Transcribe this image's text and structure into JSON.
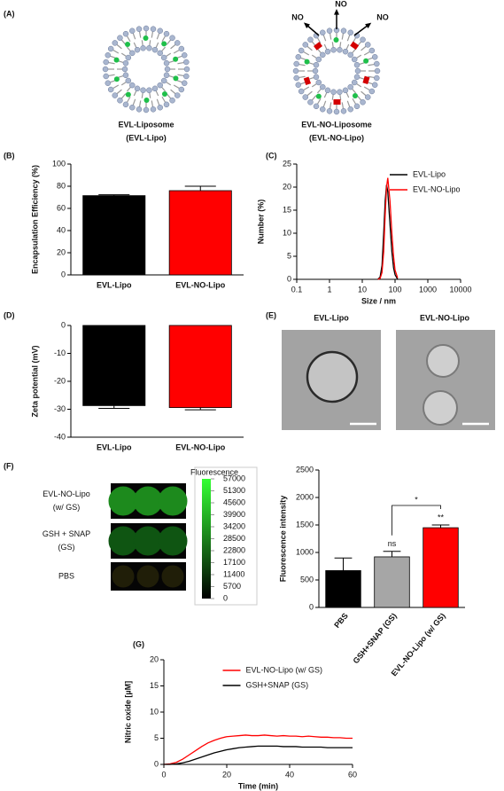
{
  "panel_labels": [
    "(A)",
    "(B)",
    "(C)",
    "(D)",
    "(E)",
    "(F)",
    "(G)"
  ],
  "panel_a": {
    "captions": [
      [
        "EVL-Liposome",
        "(EVL-Lipo)"
      ],
      [
        "EVL-NO-Liposome",
        "(EVL-NO-Lipo)"
      ]
    ],
    "no_labels": [
      "NO",
      "NO",
      "NO"
    ]
  },
  "panel_e": {
    "titles": [
      "EVL-Lipo",
      "EVL-NO-Lipo"
    ]
  },
  "panel_f": {
    "rows": [
      [
        "EVL-NO-Lipo",
        "(w/ GS)"
      ],
      [
        "GSH + SNAP",
        "(GS)"
      ],
      [
        "PBS"
      ]
    ],
    "colorbar": {
      "title": "Fluorescence",
      "ticks": [
        57000,
        51300,
        45600,
        39900,
        34200,
        28500,
        22800,
        17100,
        11400,
        5700,
        0
      ]
    }
  },
  "chart_data": [
    {
      "type": "bar",
      "ylabel": "Encapsulation Efficiency (%)",
      "categories": [
        "EVL-Lipo",
        "EVL-NO-Lipo"
      ],
      "values": [
        71.5,
        76
      ],
      "errors": [
        0.8,
        4
      ],
      "colors": [
        "#000000",
        "#ff0000"
      ],
      "ylim": [
        0,
        100
      ],
      "yticks": [
        0,
        20,
        40,
        60,
        80,
        100
      ]
    },
    {
      "type": "line",
      "xlabel": "Size / nm",
      "ylabel": "Number (%)",
      "log_x": true,
      "x": [
        30,
        35,
        40,
        45,
        50,
        55,
        60,
        70,
        80,
        90,
        100,
        120
      ],
      "series": [
        {
          "name": "EVL-Lipo",
          "color": "#000000",
          "values": [
            0,
            0.5,
            3,
            10,
            17,
            20.5,
            19,
            12,
            6,
            2.5,
            1,
            0
          ]
        },
        {
          "name": "EVL-NO-Lipo",
          "color": "#ff0000",
          "values": [
            0,
            0.2,
            1.5,
            6,
            14,
            20,
            22,
            17,
            10,
            5,
            2,
            0.3
          ]
        }
      ],
      "xlim": [
        0.1,
        10000
      ],
      "xticks": [
        0.1,
        1,
        10,
        100,
        1000,
        10000
      ],
      "ylim": [
        0,
        25
      ],
      "yticks": [
        0,
        5,
        10,
        15,
        20,
        25
      ],
      "legend": "upper right"
    },
    {
      "type": "bar",
      "ylabel": "Zeta potential (mV)",
      "categories": [
        "EVL-Lipo",
        "EVL-NO-Lipo"
      ],
      "values": [
        -28.7,
        -29.4
      ],
      "errors": [
        1,
        0.8
      ],
      "colors": [
        "#000000",
        "#ff0000"
      ],
      "ylim": [
        -40,
        0
      ],
      "yticks": [
        0,
        -10,
        -20,
        -30,
        -40
      ]
    },
    {
      "type": "bar",
      "ylabel": "Fluorescence intensity",
      "categories": [
        "PBS",
        "GSH+SNAP (GS)",
        "EVL-NO-Lipo (w/ GS)"
      ],
      "values": [
        670,
        920,
        1450
      ],
      "errors": [
        230,
        100,
        50
      ],
      "colors": [
        "#000000",
        "#a6a6a6",
        "#ff0000"
      ],
      "ylim": [
        0,
        2500
      ],
      "yticks": [
        0,
        500,
        1000,
        1500,
        2000,
        2500
      ],
      "annotations": [
        "ns",
        "**",
        "*"
      ]
    },
    {
      "type": "line",
      "xlabel": "Time (min)",
      "ylabel": "Nitric oxide [µM]",
      "x": [
        0,
        2,
        4,
        6,
        8,
        10,
        12,
        14,
        16,
        18,
        20,
        22,
        24,
        26,
        28,
        30,
        32,
        34,
        36,
        38,
        40,
        42,
        44,
        46,
        48,
        50,
        52,
        54,
        56,
        58,
        60
      ],
      "series": [
        {
          "name": "EVL-NO-Lipo (w/ GS)",
          "color": "#ff0000",
          "values": [
            0,
            0.1,
            0.4,
            1.0,
            1.8,
            2.6,
            3.4,
            4.1,
            4.6,
            5.0,
            5.3,
            5.4,
            5.5,
            5.6,
            5.5,
            5.5,
            5.6,
            5.5,
            5.4,
            5.5,
            5.4,
            5.4,
            5.3,
            5.4,
            5.3,
            5.2,
            5.2,
            5.1,
            5.1,
            5.0,
            5.0
          ]
        },
        {
          "name": "GSH+SNAP (GS)",
          "color": "#000000",
          "values": [
            0,
            0,
            0.1,
            0.3,
            0.6,
            1.0,
            1.4,
            1.8,
            2.2,
            2.5,
            2.8,
            3.0,
            3.2,
            3.3,
            3.4,
            3.5,
            3.5,
            3.5,
            3.5,
            3.4,
            3.4,
            3.4,
            3.3,
            3.3,
            3.3,
            3.3,
            3.2,
            3.2,
            3.2,
            3.2,
            3.2
          ]
        }
      ],
      "xlim": [
        0,
        60
      ],
      "xticks": [
        0,
        20,
        40,
        60
      ],
      "ylim": [
        0,
        20
      ],
      "yticks": [
        0,
        5,
        10,
        15,
        20
      ],
      "legend": "upper center"
    }
  ]
}
